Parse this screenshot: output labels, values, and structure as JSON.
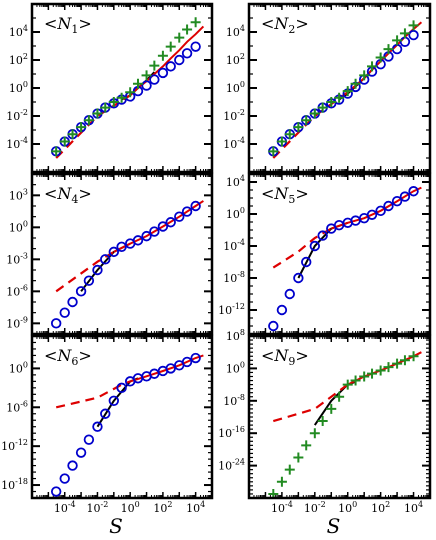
{
  "chart_data": [
    {
      "type": "scatter",
      "title": "<N1>",
      "title_main": "N",
      "title_sub": "1",
      "xscale": "log",
      "yscale": "log",
      "xlim": [
        1e-06,
        100000.0
      ],
      "ylim": [
        1e-06,
        1000000.0
      ],
      "xticks": [],
      "yticks": [
        0.0001,
        0.01,
        1.0,
        100.0,
        10000.0
      ],
      "ytick_labels": [
        [
          "10",
          "-4"
        ],
        [
          "10",
          "-2"
        ],
        [
          "10",
          "0"
        ],
        [
          "10",
          "2"
        ],
        [
          "10",
          "4"
        ]
      ],
      "series": [
        {
          "marker": "circle",
          "color": "#0000cc",
          "x": [
            3e-05,
            0.0001,
            0.0003,
            0.001,
            0.003,
            0.01,
            0.03,
            0.1,
            0.3,
            1,
            3,
            10,
            30,
            100,
            300,
            1000,
            3000,
            10000.0
          ],
          "y": [
            3e-05,
            0.00015,
            0.0005,
            0.0016,
            0.005,
            0.015,
            0.04,
            0.08,
            0.15,
            0.25,
            0.6,
            1.5,
            4,
            12,
            35,
            100,
            300,
            900
          ]
        },
        {
          "marker": "plus",
          "color": "#228b22",
          "x": [
            3e-05,
            0.0001,
            0.0003,
            0.001,
            0.003,
            0.01,
            0.03,
            0.1,
            0.3,
            1,
            3,
            10,
            30,
            100,
            300,
            1000,
            3000,
            10000.0
          ],
          "y": [
            3e-05,
            0.00015,
            0.0005,
            0.0016,
            0.005,
            0.015,
            0.04,
            0.1,
            0.2,
            0.5,
            2,
            8,
            40,
            200,
            900,
            4000,
            15000,
            50000
          ]
        },
        {
          "line": "solid",
          "color": "#000000",
          "x": [
            0.3,
            1,
            3,
            10,
            30
          ],
          "y": [
            0.15,
            0.3,
            1,
            3.5,
            14
          ]
        },
        {
          "line": "solid",
          "color": "#dd0000",
          "x": [
            1,
            3,
            10,
            30,
            100,
            300,
            1000,
            3000,
            10000.0,
            30000.0
          ],
          "y": [
            0.3,
            1,
            3,
            10,
            35,
            130,
            500,
            2000,
            7000,
            25000
          ]
        },
        {
          "line": "dashed",
          "color": "#dd0000",
          "x": [
            3e-05,
            0.01,
            1
          ],
          "y": [
            1e-05,
            0.01,
            0.3
          ]
        }
      ]
    },
    {
      "type": "scatter",
      "title": "<N2>",
      "title_main": "N",
      "title_sub": "2",
      "xscale": "log",
      "yscale": "log",
      "xlim": [
        1e-06,
        100000.0
      ],
      "ylim": [
        1e-06,
        1000000.0
      ],
      "xticks": [],
      "yticks": [
        0.0001,
        0.01,
        1.0,
        100.0,
        10000.0
      ],
      "ytick_labels": [
        [
          "10",
          "-4"
        ],
        [
          "10",
          "-2"
        ],
        [
          "10",
          "0"
        ],
        [
          "10",
          "2"
        ],
        [
          "10",
          "4"
        ]
      ],
      "series": [
        {
          "marker": "circle",
          "color": "#0000cc",
          "x": [
            3e-05,
            0.0001,
            0.0003,
            0.001,
            0.003,
            0.01,
            0.03,
            0.1,
            0.3,
            1,
            3,
            10,
            30,
            100,
            300,
            1000,
            3000,
            10000.0
          ],
          "y": [
            3e-05,
            0.00015,
            0.0005,
            0.0016,
            0.005,
            0.015,
            0.04,
            0.08,
            0.15,
            0.4,
            1.2,
            4,
            15,
            50,
            180,
            600,
            2000,
            6000
          ]
        },
        {
          "marker": "plus",
          "color": "#228b22",
          "x": [
            3e-05,
            0.0001,
            0.0003,
            0.001,
            0.003,
            0.01,
            0.03,
            0.1,
            0.3,
            1,
            3,
            10,
            30,
            100,
            300,
            1000,
            3000,
            10000.0
          ],
          "y": [
            3e-05,
            0.00015,
            0.0005,
            0.0016,
            0.005,
            0.015,
            0.04,
            0.1,
            0.2,
            0.6,
            2,
            8,
            35,
            150,
            600,
            2500,
            8000,
            30000
          ]
        },
        {
          "line": "solid",
          "color": "#000000",
          "x": [
            0.3,
            1,
            3,
            10,
            30
          ],
          "y": [
            0.15,
            0.4,
            1.3,
            5,
            20
          ]
        },
        {
          "line": "solid",
          "color": "#dd0000",
          "x": [
            1,
            3,
            10,
            30,
            100,
            300,
            1000,
            3000,
            10000.0,
            30000.0
          ],
          "y": [
            0.5,
            1.5,
            5,
            20,
            80,
            300,
            1200,
            4500,
            16000,
            50000
          ]
        },
        {
          "line": "dashed",
          "color": "#dd0000",
          "x": [
            3e-05,
            0.01,
            1
          ],
          "y": [
            1e-05,
            0.01,
            0.5
          ]
        }
      ]
    },
    {
      "type": "scatter",
      "title": "<N4>",
      "title_main": "N",
      "title_sub": "4",
      "xscale": "log",
      "yscale": "log",
      "xlim": [
        1e-06,
        100000.0
      ],
      "ylim": [
        1e-10,
        100000.0
      ],
      "xticks": [],
      "yticks": [
        1e-09,
        1e-06,
        0.001,
        1.0,
        1000.0
      ],
      "ytick_labels": [
        [
          "10",
          "-9"
        ],
        [
          "10",
          "-6"
        ],
        [
          "10",
          "-3"
        ],
        [
          "10",
          "0"
        ],
        [
          "10",
          "3"
        ]
      ],
      "series": [
        {
          "marker": "circle",
          "color": "#0000cc",
          "x": [
            3e-05,
            0.0001,
            0.0003,
            0.001,
            0.003,
            0.01,
            0.03,
            0.1,
            0.3,
            1,
            3,
            10,
            30,
            100,
            300,
            1000,
            3000,
            10000.0
          ],
          "y": [
            1e-09,
            1e-08,
            1e-07,
            1e-06,
            1e-05,
            0.0001,
            0.001,
            0.005,
            0.015,
            0.03,
            0.06,
            0.15,
            0.4,
            1.2,
            3,
            10,
            30,
            100
          ]
        },
        {
          "line": "solid",
          "color": "#000000",
          "x": [
            0.001,
            0.01,
            0.1,
            1
          ],
          "y": [
            1e-06,
            0.0001,
            0.005,
            0.03
          ]
        },
        {
          "line": "solid",
          "color": "#dd0000",
          "x": [
            0.1,
            1,
            10,
            100,
            1000,
            10000.0,
            30000.0
          ],
          "y": [
            0.005,
            0.03,
            0.15,
            1.2,
            10,
            100,
            300
          ]
        },
        {
          "line": "dashed",
          "color": "#dd0000",
          "x": [
            3e-05,
            0.01,
            0.1
          ],
          "y": [
            1e-06,
            0.0006,
            0.005
          ]
        }
      ]
    },
    {
      "type": "scatter",
      "title": "<N5>",
      "title_main": "N",
      "title_sub": "5",
      "xscale": "log",
      "yscale": "log",
      "xlim": [
        1e-06,
        100000.0
      ],
      "ylim": [
        1e-15,
        100000.0
      ],
      "xticks": [],
      "yticks": [
        1e-12,
        1e-08,
        0.0001,
        1.0,
        10000.0
      ],
      "ytick_labels": [
        [
          "10",
          "-12"
        ],
        [
          "10",
          "-8"
        ],
        [
          "10",
          "-4"
        ],
        [
          "10",
          "0"
        ],
        [
          "10",
          "4"
        ]
      ],
      "series": [
        {
          "marker": "circle",
          "color": "#0000cc",
          "x": [
            3e-05,
            0.0001,
            0.0003,
            0.001,
            0.003,
            0.01,
            0.03,
            0.1,
            0.3,
            1,
            3,
            10,
            30,
            100,
            300,
            1000,
            3000,
            10000.0
          ],
          "y": [
            1e-14,
            1e-12,
            1e-10,
            1e-08,
            1e-06,
            0.0001,
            0.002,
            0.015,
            0.04,
            0.08,
            0.15,
            0.3,
            0.8,
            2.5,
            10,
            40,
            150,
            700
          ]
        },
        {
          "line": "solid",
          "color": "#000000",
          "x": [
            0.001,
            0.01,
            0.1,
            1
          ],
          "y": [
            1e-08,
            0.0001,
            0.015,
            0.08
          ]
        },
        {
          "line": "solid",
          "color": "#dd0000",
          "x": [
            0.1,
            1,
            10,
            100,
            1000,
            10000.0,
            30000.0
          ],
          "y": [
            0.015,
            0.08,
            0.3,
            2.5,
            40,
            700,
            2000
          ]
        },
        {
          "line": "dashed",
          "color": "#dd0000",
          "x": [
            3e-05,
            0.001,
            0.01,
            0.1
          ],
          "y": [
            2e-07,
            2e-05,
            0.001,
            0.015
          ]
        }
      ]
    },
    {
      "type": "scatter",
      "title": "<N6>",
      "title_main": "N",
      "title_sub": "6",
      "xscale": "log",
      "yscale": "log",
      "xlim": [
        1e-06,
        100000.0
      ],
      "ylim": [
        1e-20,
        100000.0
      ],
      "xticks": [
        0.0001,
        0.01,
        1.0,
        100.0,
        10000.0
      ],
      "xtick_labels": [
        [
          "10",
          "-4"
        ],
        [
          "10",
          "-2"
        ],
        [
          "10",
          "0"
        ],
        [
          "10",
          "2"
        ],
        [
          "10",
          "4"
        ]
      ],
      "yticks": [
        1e-18,
        1e-12,
        1e-06,
        1.0
      ],
      "ytick_labels": [
        [
          "10",
          "-18"
        ],
        [
          "10",
          "-12"
        ],
        [
          "10",
          "-6"
        ],
        [
          "10",
          "0"
        ]
      ],
      "xlabel": "S",
      "series": [
        {
          "marker": "circle",
          "color": "#0000cc",
          "x": [
            3e-05,
            0.0001,
            0.0003,
            0.001,
            0.003,
            0.01,
            0.03,
            0.1,
            0.3,
            1,
            3,
            10,
            30,
            100,
            300,
            1000,
            3000,
            10000.0
          ],
          "y": [
            1e-19,
            1e-17,
            1e-15,
            1e-13,
            1e-11,
            1e-09,
            1e-07,
            1e-05,
            0.001,
            0.01,
            0.03,
            0.06,
            0.15,
            0.4,
            1,
            3,
            10,
            40
          ]
        },
        {
          "line": "solid",
          "color": "#000000",
          "x": [
            0.01,
            0.1,
            1,
            3
          ],
          "y": [
            1e-09,
            1e-05,
            0.01,
            0.03
          ]
        },
        {
          "line": "solid",
          "color": "#dd0000",
          "x": [
            1,
            10,
            100,
            1000,
            10000.0,
            30000.0
          ],
          "y": [
            0.01,
            0.06,
            0.4,
            3,
            40,
            100
          ]
        },
        {
          "line": "dashed",
          "color": "#dd0000",
          "x": [
            3e-05,
            0.01,
            0.3,
            1
          ],
          "y": [
            1e-06,
            3e-05,
            0.003,
            0.01
          ]
        }
      ]
    },
    {
      "type": "scatter",
      "title": "<N9>",
      "title_main": "N",
      "title_sub": "9",
      "xscale": "log",
      "yscale": "log",
      "xlim": [
        1e-06,
        100000.0
      ],
      "ylim": [
        1e-32,
        100000000.0
      ],
      "xticks": [
        0.0001,
        0.01,
        1.0,
        100.0,
        10000.0
      ],
      "xtick_labels": [
        [
          "10",
          "-4"
        ],
        [
          "10",
          "-2"
        ],
        [
          "10",
          "0"
        ],
        [
          "10",
          "2"
        ],
        [
          "10",
          "4"
        ]
      ],
      "yticks": [
        1e-24,
        1e-16,
        1e-08,
        1.0,
        100000000.0
      ],
      "ytick_labels": [
        [
          "10",
          "-24"
        ],
        [
          "10",
          "-16"
        ],
        [
          "10",
          "-8"
        ],
        [
          "10",
          "0"
        ],
        [
          "10",
          "8"
        ]
      ],
      "xlabel": "S",
      "series": [
        {
          "marker": "plus",
          "color": "#228b22",
          "x": [
            3e-05,
            0.0001,
            0.0003,
            0.001,
            0.003,
            0.01,
            0.03,
            0.1,
            0.3,
            1,
            3,
            10,
            30,
            100,
            300,
            1000,
            3000,
            10000.0
          ],
          "y": [
            1e-31,
            1e-28,
            1e-25,
            1e-22,
            1e-19,
            1e-16,
            1e-13,
            1e-10,
            1e-07,
            0.0001,
            0.001,
            0.01,
            0.05,
            0.3,
            2,
            15,
            100,
            1000
          ]
        },
        {
          "line": "solid",
          "color": "#000000",
          "x": [
            0.01,
            0.1,
            1,
            3
          ],
          "y": [
            1e-14,
            1e-08,
            0.0001,
            0.0005
          ]
        },
        {
          "line": "solid",
          "color": "#dd0000",
          "x": [
            1,
            10,
            100,
            1000,
            10000.0,
            30000.0
          ],
          "y": [
            0.0001,
            0.01,
            0.3,
            15,
            1000,
            10000.0
          ]
        },
        {
          "line": "dashed",
          "color": "#dd0000",
          "x": [
            3e-05,
            0.01,
            1
          ],
          "y": [
            1e-13,
            1e-10,
            0.0001
          ]
        }
      ]
    }
  ]
}
